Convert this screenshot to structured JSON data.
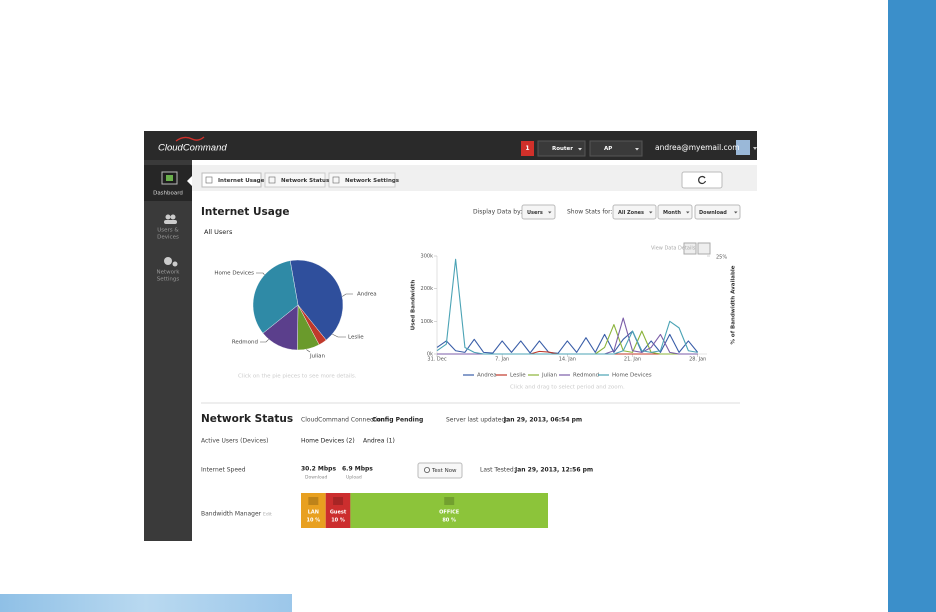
{
  "header": {
    "logo": "CloudCommand",
    "alert_count": "1",
    "router": "Router",
    "ap": "AP",
    "email": "andrea@myemail.com"
  },
  "sidebar": {
    "dashboard": "Dashboard",
    "users_1": "Users &",
    "users_2": "Devices",
    "network_1": "Network",
    "network_2": "Settings"
  },
  "tabs": [
    "Internet Usage",
    "Network Status",
    "Network Settings"
  ],
  "internet_usage": {
    "title": "Internet Usage",
    "display_by_label": "Display Data by:",
    "display_by": "Users",
    "show_stats_label": "Show Stats for:",
    "zones": "All Zones",
    "period": "Month",
    "direction": "Download",
    "pie_title": "All Users",
    "pie_hint": "Click on the pie pieces to see more details.",
    "view_details": "View Data Details",
    "line_hint": "Click and drag to select period and zoom.",
    "pie": {
      "type": "pie",
      "labels": [
        "Andrea",
        "Leslie",
        "Julian",
        "Redmond",
        "Home Devices"
      ],
      "values": [
        42,
        3,
        8,
        14,
        33
      ],
      "colors": [
        "#2f4f9c",
        "#c0392b",
        "#6a9a2c",
        "#5b3f8c",
        "#2f8aa6"
      ]
    },
    "line_chart": {
      "type": "line",
      "y_label": "Used Bandwidth",
      "y2_label": "% of Bandwidth Available",
      "ylim": [
        0,
        300000
      ],
      "yticks": [
        {
          "value": 0,
          "label": "0k"
        },
        {
          "value": 100000,
          "label": "100k"
        },
        {
          "value": 200000,
          "label": "200k"
        },
        {
          "value": 300000,
          "label": "300k"
        }
      ],
      "y2lim": [
        0,
        25
      ],
      "y2ticks": [
        {
          "value": 25,
          "label": "25%"
        }
      ],
      "xlim": [
        0,
        29
      ],
      "xticks": [
        {
          "value": 0,
          "label": "31. Dec"
        },
        {
          "value": 7,
          "label": "7. Jan"
        },
        {
          "value": 14,
          "label": "14. Jan"
        },
        {
          "value": 21,
          "label": "21. Jan"
        },
        {
          "value": 28,
          "label": "28. Jan"
        }
      ],
      "series": [
        {
          "name": "Andrea",
          "color": "#3a5ea8",
          "values": [
            20000,
            40000,
            10000,
            5000,
            45000,
            5000,
            3000,
            40000,
            5000,
            40000,
            3000,
            40000,
            5000,
            2000,
            40000,
            5000,
            50000,
            5000,
            60000,
            5000,
            45000,
            70000,
            5000,
            40000,
            5000,
            60000,
            5000,
            40000,
            5000
          ]
        },
        {
          "name": "Leslie",
          "color": "#c0392b",
          "values": [
            0,
            0,
            0,
            0,
            0,
            0,
            0,
            0,
            0,
            0,
            0,
            8000,
            6000,
            0,
            0,
            0,
            0,
            0,
            0,
            0,
            0,
            0,
            0,
            0,
            0,
            0,
            0,
            0,
            0
          ]
        },
        {
          "name": "Julian",
          "color": "#8bb33a",
          "values": [
            0,
            0,
            0,
            0,
            0,
            0,
            0,
            0,
            0,
            0,
            0,
            0,
            0,
            0,
            0,
            0,
            0,
            0,
            20000,
            90000,
            10000,
            5000,
            70000,
            5000,
            0,
            0,
            0,
            0,
            0
          ]
        },
        {
          "name": "Redmond",
          "color": "#7b5ea8",
          "values": [
            0,
            0,
            0,
            0,
            0,
            0,
            0,
            0,
            0,
            0,
            0,
            0,
            0,
            0,
            0,
            0,
            0,
            0,
            0,
            10000,
            110000,
            10000,
            5000,
            20000,
            60000,
            5000,
            0,
            0,
            0
          ]
        },
        {
          "name": "Home Devices",
          "color": "#4ba3b5",
          "values": [
            10000,
            30000,
            290000,
            20000,
            5000,
            0,
            0,
            0,
            0,
            0,
            0,
            0,
            0,
            0,
            0,
            0,
            0,
            0,
            0,
            0,
            10000,
            70000,
            10000,
            5000,
            10000,
            100000,
            80000,
            10000,
            5000
          ]
        }
      ]
    }
  },
  "network_status": {
    "title": "Network Status",
    "connection_label": "CloudCommand Connection:",
    "connection": "Config Pending",
    "updated_label": "Server last updated:",
    "updated": "Jan 29, 2013, 06:54 pm",
    "active_label": "Active Users (Devices)",
    "active_1": "Home Devices (2)",
    "active_2": "Andrea (1)",
    "speed_label": "Internet Speed",
    "download": "30.2 Mbps",
    "download_label": "Download",
    "upload": "6.9 Mbps",
    "upload_label": "Upload",
    "test_button": "Test Now",
    "tested_label": "Last Tested:",
    "tested": "Jan 29, 2013, 12:56 pm",
    "bandwidth_label": "Bandwidth Manager",
    "edit": "Edit",
    "zones": [
      {
        "name": "LAN",
        "percent": 10,
        "label": "10 %",
        "color": "#e8a020"
      },
      {
        "name": "Guest",
        "percent": 10,
        "label": "10 %",
        "color": "#cc2e2e"
      },
      {
        "name": "OFFICE",
        "percent": 80,
        "label": "80 %",
        "color": "#8cc43a"
      }
    ]
  }
}
